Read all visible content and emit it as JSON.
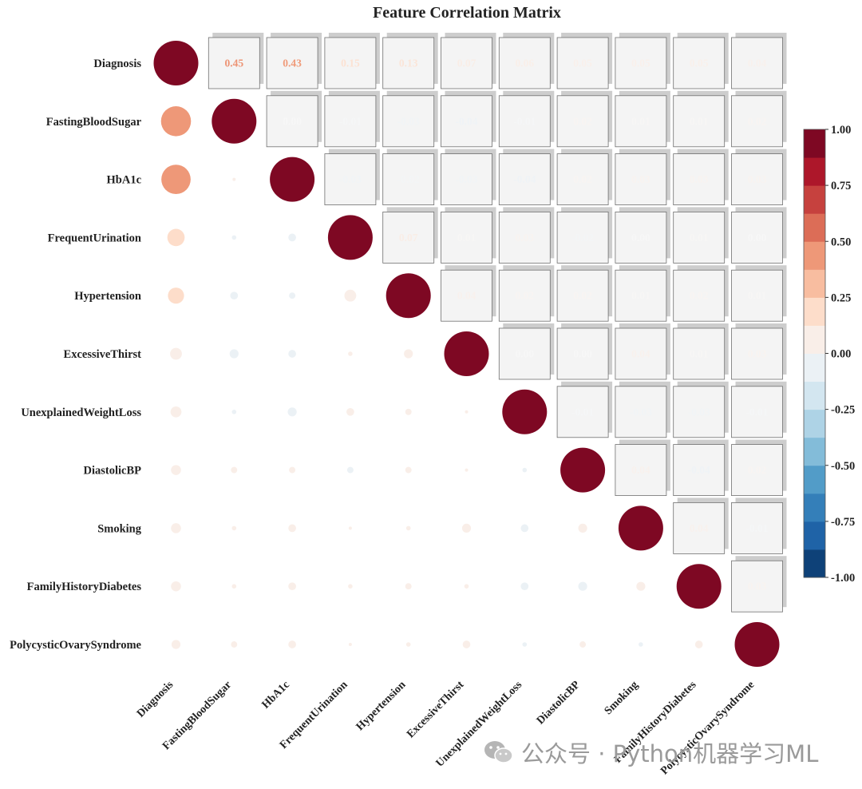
{
  "chart_data": {
    "type": "heatmap",
    "title": "Feature Correlation Matrix",
    "variables": [
      "Diagnosis",
      "FastingBloodSugar",
      "HbA1c",
      "FrequentUrination",
      "Hypertension",
      "ExcessiveThirst",
      "UnexplainedWeightLoss",
      "DiastolicBP",
      "Smoking",
      "FamilyHistoryDiabetes",
      "PolycysticOvarySyndrome"
    ],
    "matrix": [
      [
        1.0,
        0.45,
        0.43,
        0.15,
        0.13,
        0.07,
        0.06,
        0.05,
        0.05,
        0.05,
        0.04
      ],
      [
        0.45,
        1.0,
        0.0,
        -0.01,
        -0.03,
        -0.04,
        -0.01,
        0.02,
        0.01,
        0.01,
        0.02
      ],
      [
        0.43,
        0.0,
        1.0,
        -0.03,
        -0.02,
        -0.03,
        -0.04,
        0.02,
        0.03,
        0.03,
        0.03
      ],
      [
        0.15,
        -0.01,
        -0.03,
        1.0,
        0.07,
        0.01,
        0.03,
        -0.02,
        0.0,
        0.01,
        0.0
      ],
      [
        0.13,
        -0.03,
        -0.02,
        0.07,
        1.0,
        0.04,
        0.02,
        0.02,
        0.01,
        0.02,
        0.01
      ],
      [
        0.07,
        -0.04,
        -0.03,
        0.01,
        0.04,
        1.0,
        0.0,
        0.0,
        0.04,
        0.01,
        0.03
      ],
      [
        0.06,
        -0.01,
        -0.04,
        0.03,
        0.02,
        0.0,
        1.0,
        -0.01,
        -0.03,
        -0.03,
        -0.01
      ],
      [
        0.05,
        0.02,
        0.02,
        -0.02,
        0.02,
        0.0,
        -0.01,
        1.0,
        0.04,
        -0.04,
        0.02
      ],
      [
        0.05,
        0.01,
        0.03,
        0.0,
        0.01,
        0.04,
        -0.03,
        0.04,
        1.0,
        0.04,
        -0.01
      ],
      [
        0.05,
        0.01,
        0.03,
        0.01,
        0.02,
        0.01,
        -0.03,
        -0.04,
        0.04,
        1.0,
        0.03
      ],
      [
        0.04,
        0.02,
        0.03,
        0.0,
        0.01,
        0.03,
        -0.01,
        0.02,
        -0.01,
        0.03,
        1.0
      ]
    ],
    "value_format": "0.00",
    "colorbar": {
      "range": [
        -1.0,
        1.0
      ],
      "tick_labels": [
        "1.00",
        "0.75",
        "0.50",
        "0.25",
        "0.00",
        "-0.25",
        "-0.50",
        "-0.75",
        "-1.00"
      ],
      "ticks": [
        1.0,
        0.75,
        0.5,
        0.25,
        0.0,
        -0.25,
        -0.5,
        -0.75,
        -1.0
      ],
      "levels": 16,
      "colormap": "RdBu_r",
      "placement": "right"
    },
    "lower_triangle": "circles",
    "upper_triangle": "text-boxes",
    "grid": false
  },
  "colors": {
    "stops": [
      "#053061",
      "#2166ac",
      "#4393c3",
      "#92c5de",
      "#d1e5f0",
      "#f7f7f7",
      "#fddbc7",
      "#f4a582",
      "#d6604d",
      "#b2182b",
      "#67001f"
    ],
    "box_fill": "#f4f4f4",
    "box_shadow": "#cdcdcd",
    "box_border": "#707070"
  },
  "watermark": {
    "text": "公众号 · Python机器学习ML",
    "icon": "wechat-icon"
  }
}
